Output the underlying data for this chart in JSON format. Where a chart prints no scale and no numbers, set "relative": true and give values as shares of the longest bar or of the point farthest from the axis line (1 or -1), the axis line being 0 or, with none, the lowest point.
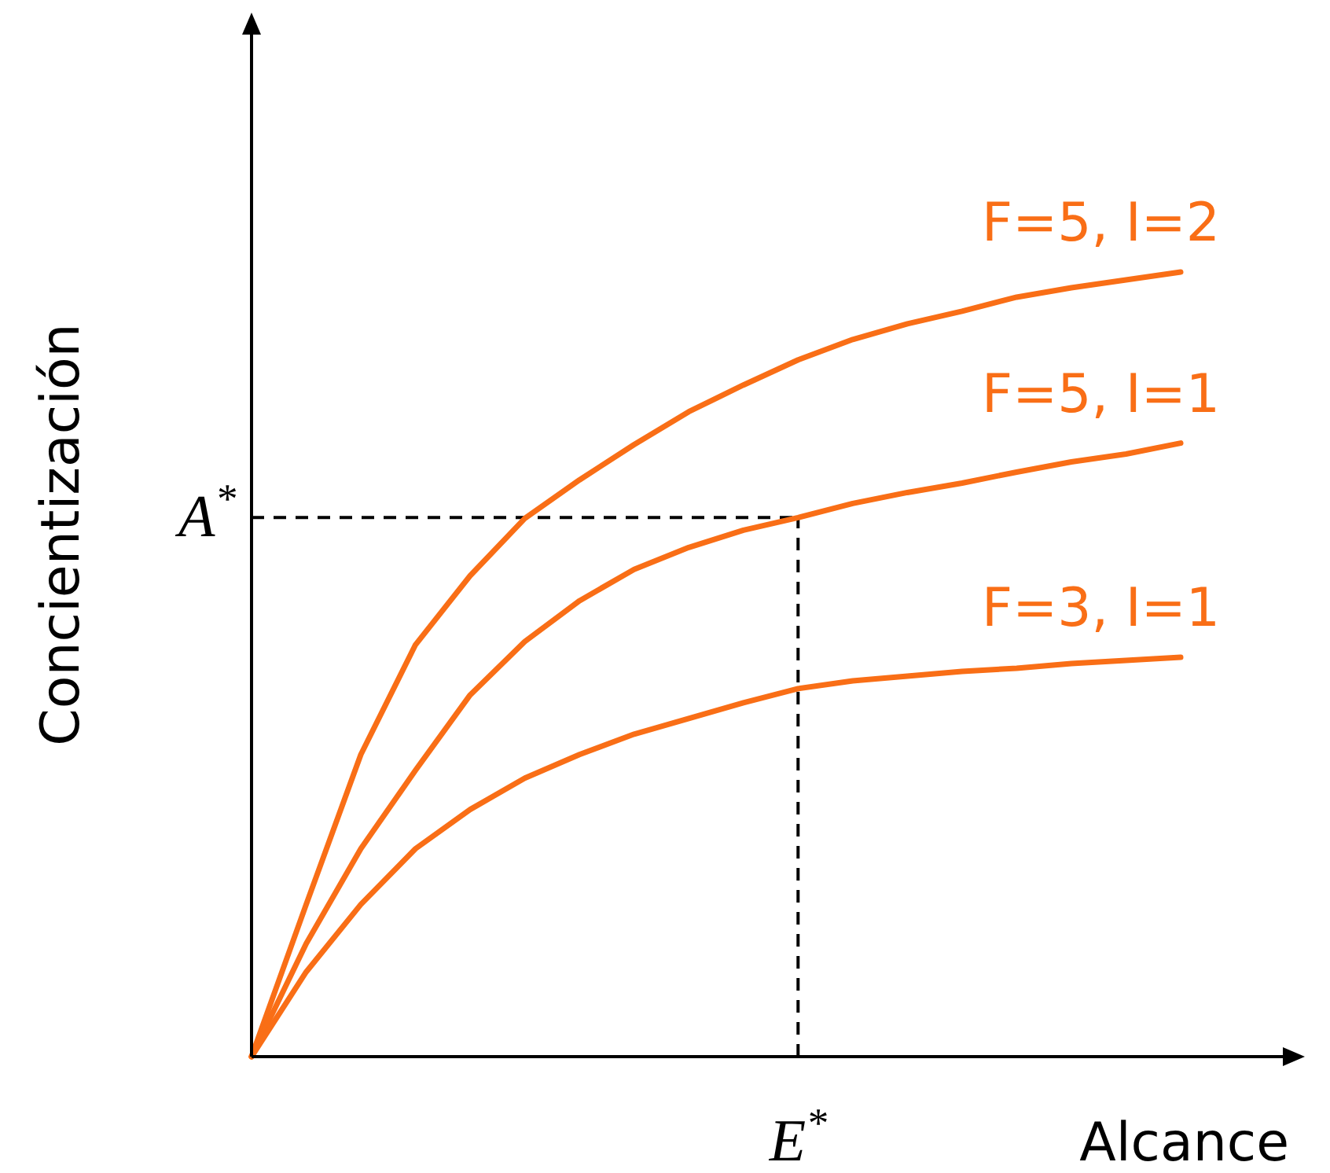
{
  "chart_data": {
    "type": "line",
    "relative": true,
    "xlabel": "Alcance",
    "ylabel": "Concientización",
    "marker": "none",
    "line_style": "solid",
    "categories": [
      null,
      null,
      null,
      null,
      null,
      null,
      null,
      null,
      null,
      null,
      null,
      null,
      null,
      null,
      null,
      null,
      null,
      null
    ],
    "series": [
      {
        "name": "F=5, I=2",
        "color": "#f96e16",
        "values": [
          0,
          0.194,
          0.385,
          0.525,
          0.613,
          0.686,
          0.735,
          0.78,
          0.822,
          0.856,
          0.888,
          0.914,
          0.934,
          0.95,
          0.968,
          0.98,
          0.99,
          1
        ]
      },
      {
        "name": "F=5, I=1",
        "color": "#f96e16",
        "values": [
          0,
          0.144,
          0.265,
          0.365,
          0.461,
          0.529,
          0.581,
          0.621,
          0.649,
          0.671,
          0.687,
          0.705,
          0.719,
          0.731,
          0.745,
          0.758,
          0.768,
          0.782
        ]
      },
      {
        "name": "F=3, I=1",
        "color": "#f96e16",
        "values": [
          0,
          0.108,
          0.194,
          0.265,
          0.315,
          0.355,
          0.385,
          0.411,
          0.431,
          0.451,
          0.469,
          0.479,
          0.485,
          0.491,
          0.495,
          0.501,
          0.505,
          0.509
        ]
      }
    ],
    "ref_lines": [
      {
        "axis": "y",
        "value": 0.687,
        "label": "A$^{*}$",
        "color": "#000000",
        "line_style": "dashed"
      }
    ],
    "annotations": [
      "E$^{*}$"
    ]
  }
}
